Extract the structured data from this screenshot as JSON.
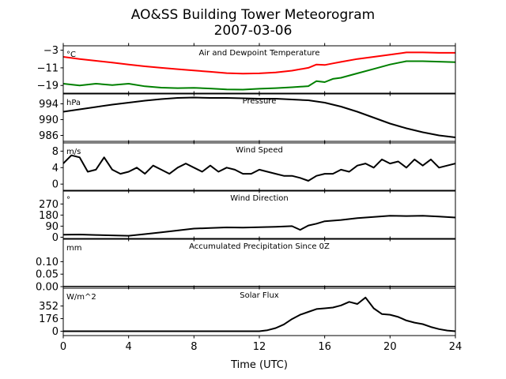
{
  "figure": {
    "title_line1": "AO&SS Building Tower Meteorogram",
    "title_line2": "2007-03-06"
  },
  "chart_data": {
    "type": "line",
    "xlabel": "Time (UTC)",
    "xlim": [
      0,
      24
    ],
    "xticks": [
      0,
      4,
      8,
      12,
      16,
      20,
      24
    ],
    "panels": [
      {
        "id": "temperature",
        "title": "Air and Dewpoint Temperature",
        "unit": "°C",
        "ylim": [
          -22.5,
          -1
        ],
        "yticks": [
          -3,
          -11,
          -19
        ],
        "series": [
          {
            "color": "#ff0000",
            "x": [
              0,
              1,
              2,
              3,
              4,
              5,
              6,
              7,
              8,
              9,
              10,
              11,
              12,
              13,
              14,
              15,
              15.5,
              16,
              16.5,
              17,
              18,
              19,
              20,
              21,
              22,
              23,
              24
            ],
            "y": [
              -6,
              -7,
              -7.8,
              -8.6,
              -9.5,
              -10.3,
              -11,
              -11.6,
              -12.2,
              -12.8,
              -13.4,
              -13.6,
              -13.5,
              -13.1,
              -12.3,
              -11,
              -9.5,
              -9.7,
              -9,
              -8.3,
              -7,
              -6,
              -5,
              -4,
              -4,
              -4.2,
              -4.2
            ]
          },
          {
            "color": "#008000",
            "x": [
              0,
              1,
              2,
              3,
              4,
              5,
              6,
              7,
              8,
              9,
              10,
              11,
              12,
              13,
              14,
              15,
              15.5,
              16,
              16.5,
              17,
              18,
              19,
              20,
              21,
              22,
              23,
              24
            ],
            "y": [
              -18.2,
              -19,
              -18.2,
              -18.8,
              -18.2,
              -19.4,
              -20,
              -20.2,
              -20.1,
              -20.4,
              -20.8,
              -20.9,
              -20.5,
              -20.2,
              -19.8,
              -19.3,
              -17,
              -17.5,
              -16,
              -15.5,
              -13.5,
              -11.5,
              -9.5,
              -8,
              -8,
              -8.2,
              -8.4
            ]
          }
        ]
      },
      {
        "id": "pressure",
        "title": "Pressure",
        "unit": "hPa",
        "ylim": [
          984.5,
          996.5
        ],
        "yticks": [
          986,
          990,
          994
        ],
        "series": [
          {
            "color": "#000000",
            "x": [
              0,
              1,
              2,
              3,
              4,
              5,
              6,
              7,
              8,
              9,
              10,
              11,
              12,
              13,
              14,
              15,
              16,
              17,
              18,
              19,
              20,
              21,
              22,
              23,
              24
            ],
            "y": [
              992,
              992.6,
              993.2,
              993.8,
              994.3,
              994.8,
              995.2,
              995.5,
              995.6,
              995.5,
              995.5,
              995.4,
              995.3,
              995.3,
              995.1,
              994.9,
              994.3,
              993.3,
              992,
              990.5,
              989,
              987.8,
              986.8,
              986,
              985.5
            ]
          }
        ]
      },
      {
        "id": "wind-speed",
        "title": "Wind Speed",
        "unit": "m/s",
        "ylim": [
          -1.5,
          10
        ],
        "yticks": [
          0,
          4,
          8
        ],
        "series": [
          {
            "color": "#000000",
            "x": [
              0,
              0.5,
              1,
              1.5,
              2,
              2.5,
              3,
              3.5,
              4,
              4.5,
              5,
              5.5,
              6,
              6.5,
              7,
              7.5,
              8,
              8.5,
              9,
              9.5,
              10,
              10.5,
              11,
              11.5,
              12,
              12.5,
              13,
              13.5,
              14,
              14.5,
              15,
              15.5,
              16,
              16.5,
              17,
              17.5,
              18,
              18.5,
              19,
              19.5,
              20,
              20.5,
              21,
              21.5,
              22,
              22.5,
              23,
              23.5,
              24
            ],
            "y": [
              5,
              7,
              6.5,
              3,
              3.5,
              6.5,
              3.5,
              2.5,
              3,
              4,
              2.5,
              4.5,
              3.5,
              2.5,
              4,
              5,
              4,
              3,
              4.5,
              3,
              4,
              3.5,
              2.5,
              2.5,
              3.5,
              3,
              2.5,
              2,
              2,
              1.5,
              0.8,
              2,
              2.5,
              2.5,
              3.5,
              3,
              4.5,
              5,
              4,
              6,
              5,
              5.5,
              4,
              6,
              4.5,
              6,
              4,
              4.5,
              5
            ]
          }
        ]
      },
      {
        "id": "wind-direction",
        "title": "Wind Direction",
        "unit": "°",
        "ylim": [
          -10,
          375
        ],
        "yticks": [
          0,
          90,
          180,
          270
        ],
        "series": [
          {
            "color": "#000000",
            "x": [
              0,
              1,
              2,
              3,
              4,
              5,
              6,
              7,
              8,
              9,
              10,
              11,
              12,
              13,
              14,
              14.5,
              15,
              15.5,
              16,
              17,
              18,
              19,
              20,
              21,
              22,
              23,
              24
            ],
            "y": [
              20,
              22,
              18,
              15,
              12,
              25,
              40,
              55,
              70,
              75,
              80,
              78,
              82,
              85,
              90,
              60,
              95,
              110,
              130,
              140,
              155,
              165,
              175,
              172,
              175,
              168,
              160
            ]
          }
        ]
      },
      {
        "id": "precipitation",
        "title": "Accumulated Precipitation Since 0Z",
        "unit": "mm",
        "ylim": [
          0,
          0.19
        ],
        "yticks": [
          0.0,
          0.05,
          0.1
        ],
        "tick_labels": [
          "0.00",
          "0.05",
          "0.10"
        ],
        "series": [
          {
            "color": "#000000",
            "x": [
              0,
              24
            ],
            "y": [
              0,
              0
            ]
          }
        ]
      },
      {
        "id": "solar-flux",
        "title": "Solar Flux",
        "unit": "W/m^2",
        "ylim": [
          -60,
          600
        ],
        "yticks": [
          0,
          176,
          352
        ],
        "series": [
          {
            "color": "#000000",
            "x": [
              0,
              12,
              12.5,
              13,
              13.5,
              14,
              14.5,
              15,
              15.5,
              16,
              16.5,
              17,
              17.5,
              18,
              18.5,
              19,
              19.5,
              20,
              20.5,
              21,
              21.5,
              22,
              22.5,
              23,
              23.5,
              24
            ],
            "y": [
              0,
              0,
              15,
              45,
              95,
              170,
              230,
              270,
              310,
              320,
              330,
              360,
              410,
              380,
              470,
              320,
              240,
              230,
              200,
              150,
              120,
              100,
              60,
              30,
              10,
              0
            ]
          }
        ]
      }
    ]
  }
}
